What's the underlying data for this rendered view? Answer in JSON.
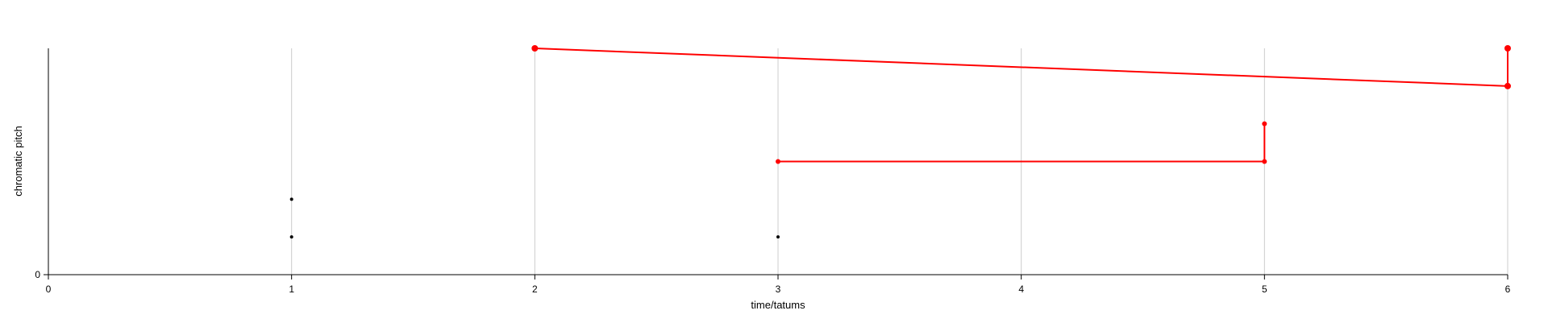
{
  "chart_data": {
    "type": "scatter",
    "xlabel": "time/tatums",
    "ylabel": "chromatic pitch",
    "xlim": [
      0,
      6
    ],
    "ylim": [
      0,
      6
    ],
    "x_ticks": [
      "0",
      "1",
      "2",
      "3",
      "4",
      "5",
      "6"
    ],
    "y_ticks": [
      "0"
    ],
    "grid": "vertical",
    "colors": {
      "highlight": "#ff0000",
      "point": "#000000",
      "grid": "#cccccc",
      "axis": "#000000"
    },
    "points": [
      {
        "x": 1,
        "y": 2
      },
      {
        "x": 1,
        "y": 1
      },
      {
        "x": 3,
        "y": 1
      }
    ],
    "segments": [
      {
        "x1": 2,
        "y1": 6,
        "x2": 6,
        "y2": 5
      },
      {
        "x1": 6,
        "y1": 5,
        "x2": 6,
        "y2": 6
      },
      {
        "x1": 3,
        "y1": 3,
        "x2": 5,
        "y2": 3
      },
      {
        "x1": 5,
        "y1": 3,
        "x2": 5,
        "y2": 4
      }
    ],
    "highlight_points": [
      {
        "x": 2,
        "y": 6,
        "size": "large"
      },
      {
        "x": 6,
        "y": 5,
        "size": "large"
      },
      {
        "x": 6,
        "y": 6,
        "size": "large"
      },
      {
        "x": 3,
        "y": 3,
        "size": "small"
      },
      {
        "x": 5,
        "y": 3,
        "size": "small"
      },
      {
        "x": 5,
        "y": 4,
        "size": "small"
      }
    ]
  }
}
